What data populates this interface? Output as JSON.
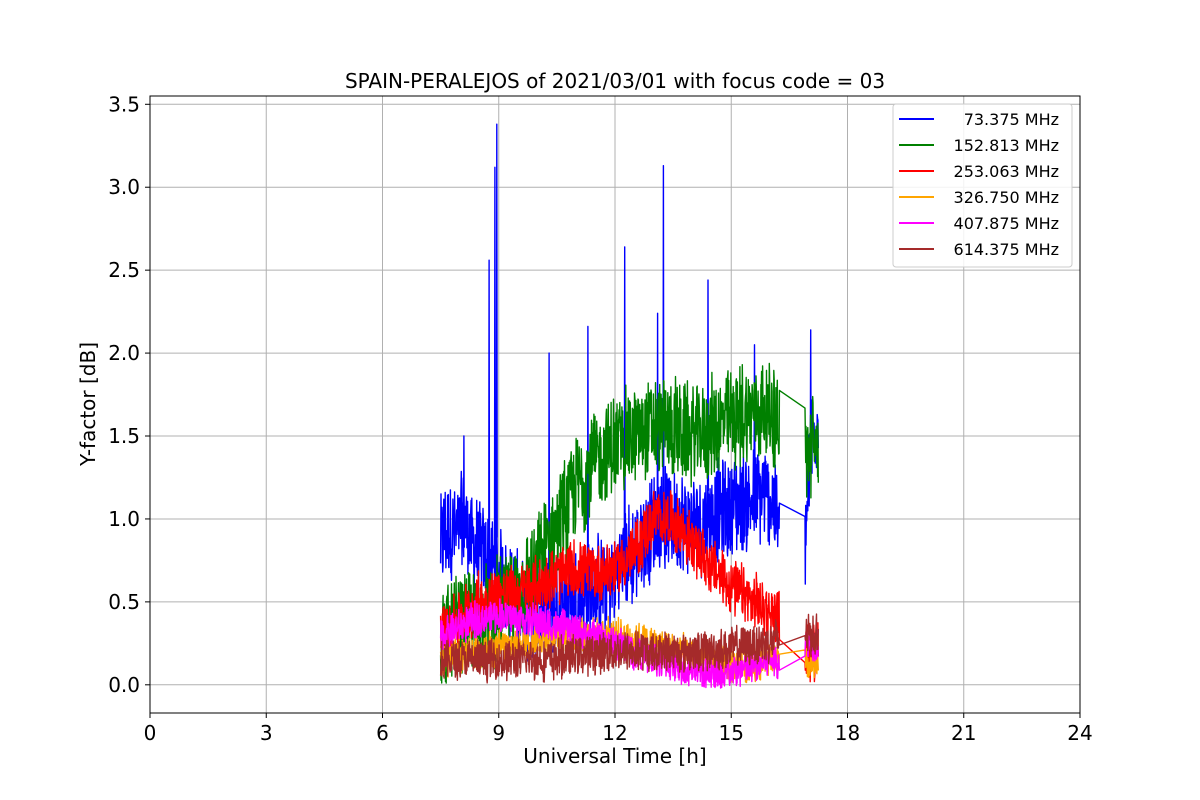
{
  "chart_data": {
    "type": "line",
    "title": "SPAIN-PERALEJOS of 2021/03/01 with focus code = 03",
    "xlabel": "Universal Time [h]",
    "ylabel": "Y-factor [dB]",
    "xlim": [
      0,
      24
    ],
    "ylim": [
      -0.17,
      3.55
    ],
    "x_ticks": [
      0,
      3,
      6,
      9,
      12,
      15,
      18,
      21,
      24
    ],
    "x_tick_labels": [
      "0",
      "3",
      "6",
      "9",
      "12",
      "15",
      "18",
      "21",
      "24"
    ],
    "y_ticks": [
      0.0,
      0.5,
      1.0,
      1.5,
      2.0,
      2.5,
      3.0,
      3.5
    ],
    "y_tick_labels": [
      "0.0",
      "0.5",
      "1.0",
      "1.5",
      "2.0",
      "2.5",
      "3.0",
      "3.5"
    ],
    "grid": true,
    "legend_position": "top-right",
    "series": [
      {
        "name": "73.375 MHz",
        "color": "#0000ff",
        "x": [
          7.5,
          7.7,
          7.9,
          8.1,
          8.3,
          8.5,
          8.75,
          8.9,
          9.2,
          9.5,
          9.8,
          10.1,
          10.4,
          10.7,
          11.0,
          11.3,
          11.6,
          11.9,
          12.2,
          12.5,
          12.8,
          13.1,
          13.4,
          13.7,
          14.0,
          14.3,
          14.6,
          14.9,
          15.2,
          15.5,
          15.8,
          16.1,
          16.25,
          16.9,
          17.0,
          17.1,
          17.25
        ],
        "y": [
          0.85,
          0.95,
          0.9,
          1.0,
          0.85,
          0.8,
          0.75,
          0.7,
          0.6,
          0.5,
          0.45,
          0.4,
          0.5,
          0.5,
          0.55,
          0.55,
          0.6,
          0.6,
          0.75,
          0.8,
          0.9,
          1.0,
          1.0,
          1.0,
          0.95,
          1.0,
          1.05,
          1.05,
          1.1,
          1.1,
          1.15,
          1.1,
          0.9,
          0.85,
          1.2,
          1.5,
          1.6
        ],
        "peaks": [
          {
            "x": 8.75,
            "y": 2.56
          },
          {
            "x": 8.9,
            "y": 3.12
          },
          {
            "x": 8.95,
            "y": 3.38
          },
          {
            "x": 8.1,
            "y": 1.5
          },
          {
            "x": 10.3,
            "y": 2.0
          },
          {
            "x": 11.3,
            "y": 2.16
          },
          {
            "x": 12.25,
            "y": 2.64
          },
          {
            "x": 13.25,
            "y": 3.13
          },
          {
            "x": 13.1,
            "y": 2.24
          },
          {
            "x": 14.4,
            "y": 2.44
          },
          {
            "x": 15.6,
            "y": 2.05
          },
          {
            "x": 17.05,
            "y": 2.14
          }
        ],
        "noise": 0.35
      },
      {
        "name": "152.813 MHz",
        "color": "#008000",
        "x": [
          7.5,
          8.0,
          8.5,
          9.0,
          9.5,
          10.0,
          10.5,
          11.0,
          11.5,
          12.0,
          12.5,
          13.0,
          13.5,
          14.0,
          14.5,
          15.0,
          15.5,
          16.0,
          16.2,
          16.9,
          17.0,
          17.1,
          17.25
        ],
        "y": [
          0.3,
          0.35,
          0.4,
          0.45,
          0.55,
          0.7,
          0.95,
          1.2,
          1.35,
          1.45,
          1.5,
          1.55,
          1.55,
          1.5,
          1.55,
          1.6,
          1.65,
          1.65,
          1.6,
          1.37,
          1.4,
          1.45,
          1.45
        ],
        "noise": 0.35
      },
      {
        "name": "253.063 MHz",
        "color": "#ff0000",
        "x": [
          7.5,
          8.0,
          8.5,
          9.0,
          9.5,
          10.0,
          10.5,
          11.0,
          11.5,
          12.0,
          12.5,
          13.0,
          13.5,
          14.0,
          14.5,
          15.0,
          15.5,
          16.0,
          16.2,
          16.9,
          17.25
        ],
        "y": [
          0.3,
          0.4,
          0.5,
          0.55,
          0.55,
          0.6,
          0.65,
          0.7,
          0.68,
          0.7,
          0.8,
          1.0,
          1.0,
          0.85,
          0.7,
          0.6,
          0.5,
          0.45,
          0.4,
          0.2,
          0.2
        ],
        "noise": 0.2
      },
      {
        "name": "326.750 MHz",
        "color": "#ffa500",
        "x": [
          7.5,
          8.0,
          8.5,
          9.0,
          9.5,
          10.0,
          10.5,
          11.0,
          11.5,
          12.0,
          12.5,
          13.0,
          13.5,
          14.0,
          14.5,
          15.0,
          15.5,
          16.0,
          16.2,
          16.9,
          17.25
        ],
        "y": [
          0.15,
          0.18,
          0.2,
          0.22,
          0.25,
          0.28,
          0.3,
          0.3,
          0.3,
          0.3,
          0.28,
          0.25,
          0.22,
          0.18,
          0.15,
          0.12,
          0.12,
          0.15,
          0.15,
          0.12,
          0.1
        ],
        "noise": 0.12
      },
      {
        "name": "407.875 MHz",
        "color": "#ff00ff",
        "x": [
          7.5,
          8.0,
          8.5,
          9.0,
          9.5,
          10.0,
          10.5,
          11.0,
          11.5,
          12.0,
          12.5,
          13.0,
          13.5,
          14.0,
          14.5,
          15.0,
          15.5,
          16.0,
          16.2,
          16.9,
          17.25
        ],
        "y": [
          0.3,
          0.35,
          0.4,
          0.42,
          0.4,
          0.38,
          0.35,
          0.32,
          0.28,
          0.25,
          0.2,
          0.15,
          0.12,
          0.08,
          0.06,
          0.08,
          0.1,
          0.15,
          0.15,
          0.25,
          0.25
        ],
        "noise": 0.12
      },
      {
        "name": "614.375 MHz",
        "color": "#a52a2a",
        "x": [
          7.5,
          8.0,
          8.5,
          9.0,
          9.5,
          10.0,
          10.5,
          11.0,
          11.5,
          12.0,
          12.5,
          13.0,
          13.5,
          14.0,
          14.5,
          15.0,
          15.5,
          16.0,
          16.2,
          16.9,
          17.25
        ],
        "y": [
          0.15,
          0.15,
          0.15,
          0.15,
          0.15,
          0.15,
          0.16,
          0.18,
          0.19,
          0.2,
          0.2,
          0.2,
          0.2,
          0.2,
          0.21,
          0.22,
          0.24,
          0.26,
          0.27,
          0.3,
          0.3
        ],
        "noise": 0.14
      }
    ]
  }
}
